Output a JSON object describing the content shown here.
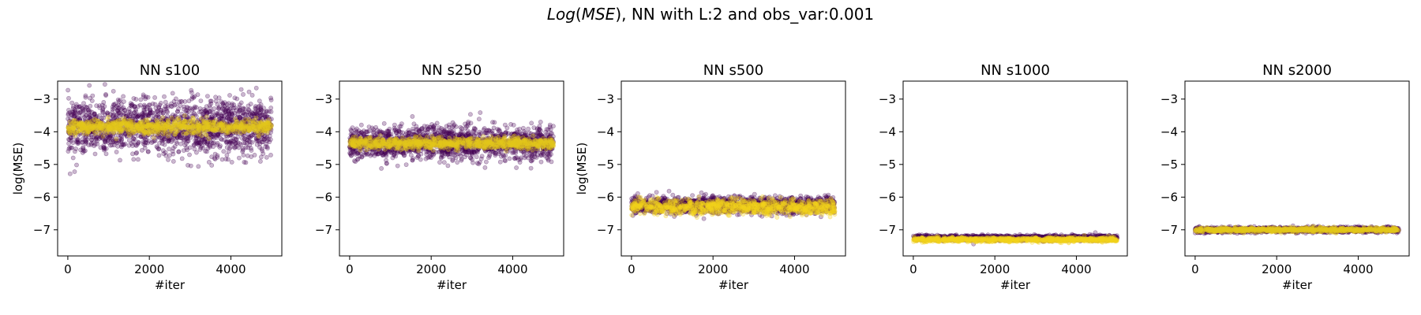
{
  "figure": {
    "title_italic": "Log",
    "title_paren_open": "(",
    "title_italic2": "MSE",
    "title_rest": "), NN with L:2 and obs_var:0.001"
  },
  "chart_data": [
    {
      "type": "scatter",
      "title": "NN s100",
      "xlabel": "#iter",
      "ylabel": "log(MSE)",
      "xlim": [
        -250,
        5250
      ],
      "ylim": [
        -7.8,
        -2.45
      ],
      "xticks": [
        0,
        2000,
        4000
      ],
      "yticks": [
        -3,
        -4,
        -5,
        -6,
        -7
      ],
      "n_iter": 5000,
      "series": [
        {
          "color": "#440154",
          "center": -3.85,
          "spread": 0.75
        },
        {
          "color": "#e3c71c",
          "center": -3.85,
          "spread": 0.2
        }
      ]
    },
    {
      "type": "scatter",
      "title": "NN s250",
      "xlabel": "#iter",
      "ylabel": "",
      "xlim": [
        -250,
        5250
      ],
      "ylim": [
        -7.8,
        -2.45
      ],
      "xticks": [
        0,
        2000,
        4000
      ],
      "yticks": [
        -3,
        -4,
        -5,
        -6,
        -7
      ],
      "n_iter": 5000,
      "series": [
        {
          "color": "#440154",
          "center": -4.35,
          "spread": 0.45
        },
        {
          "color": "#e3c71c",
          "center": -4.35,
          "spread": 0.15
        }
      ]
    },
    {
      "type": "scatter",
      "title": "NN s500",
      "xlabel": "#iter",
      "ylabel": "log(MSE)",
      "xlim": [
        -250,
        5250
      ],
      "ylim": [
        -7.8,
        -2.45
      ],
      "xticks": [
        0,
        2000,
        4000
      ],
      "yticks": [
        -3,
        -4,
        -5,
        -6,
        -7
      ],
      "n_iter": 5000,
      "series": [
        {
          "color": "#440154",
          "center": -6.25,
          "spread": 0.22
        },
        {
          "color": "#f2d21b",
          "center": -6.3,
          "spread": 0.2
        }
      ]
    },
    {
      "type": "scatter",
      "title": "NN s1000",
      "xlabel": "#iter",
      "ylabel": "",
      "xlim": [
        -250,
        5250
      ],
      "ylim": [
        -7.8,
        -2.45
      ],
      "xticks": [
        0,
        2000,
        4000
      ],
      "yticks": [
        -3,
        -4,
        -5,
        -6,
        -7
      ],
      "n_iter": 5000,
      "series": [
        {
          "color": "#440154",
          "center": -7.25,
          "spread": 0.07
        },
        {
          "color": "#f2d21b",
          "center": -7.3,
          "spread": 0.06
        }
      ]
    },
    {
      "type": "scatter",
      "title": "NN s2000",
      "xlabel": "#iter",
      "ylabel": "",
      "xlim": [
        -250,
        5250
      ],
      "ylim": [
        -7.8,
        -2.45
      ],
      "xticks": [
        0,
        2000,
        4000
      ],
      "yticks": [
        -3,
        -4,
        -5,
        -6,
        -7
      ],
      "n_iter": 5000,
      "series": [
        {
          "color": "#440154",
          "center": -7.0,
          "spread": 0.07
        },
        {
          "color": "#e3c71c",
          "center": -7.0,
          "spread": 0.06
        }
      ]
    }
  ]
}
